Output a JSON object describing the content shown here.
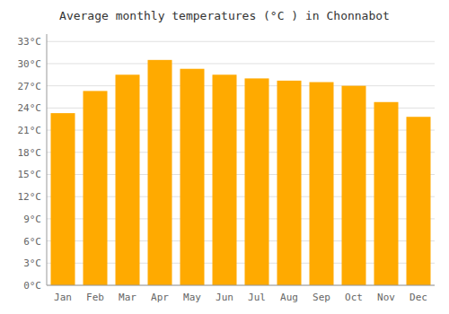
{
  "chart_data": {
    "type": "bar",
    "title": "Average monthly temperatures (°C ) in Chonnabot",
    "categories": [
      "Jan",
      "Feb",
      "Mar",
      "Apr",
      "May",
      "Jun",
      "Jul",
      "Aug",
      "Sep",
      "Oct",
      "Nov",
      "Dec"
    ],
    "values": [
      23.3,
      26.3,
      28.5,
      30.5,
      29.3,
      28.5,
      28.0,
      27.7,
      27.5,
      27.0,
      24.8,
      22.8
    ],
    "color": "#FFAA00",
    "ylim": [
      0,
      34
    ],
    "yticks": [
      {
        "value": 0,
        "label": "0°C"
      },
      {
        "value": 3,
        "label": "3°C"
      },
      {
        "value": 6,
        "label": "6°C"
      },
      {
        "value": 9,
        "label": "9°C"
      },
      {
        "value": 12,
        "label": "12°C"
      },
      {
        "value": 15,
        "label": "15°C"
      },
      {
        "value": 18,
        "label": "18°C"
      },
      {
        "value": 21,
        "label": "21°C"
      },
      {
        "value": 24,
        "label": "24°C"
      },
      {
        "value": 27,
        "label": "27°C"
      },
      {
        "value": 30,
        "label": "30°C"
      },
      {
        "value": 33,
        "label": "33°C"
      }
    ],
    "grid": true
  }
}
